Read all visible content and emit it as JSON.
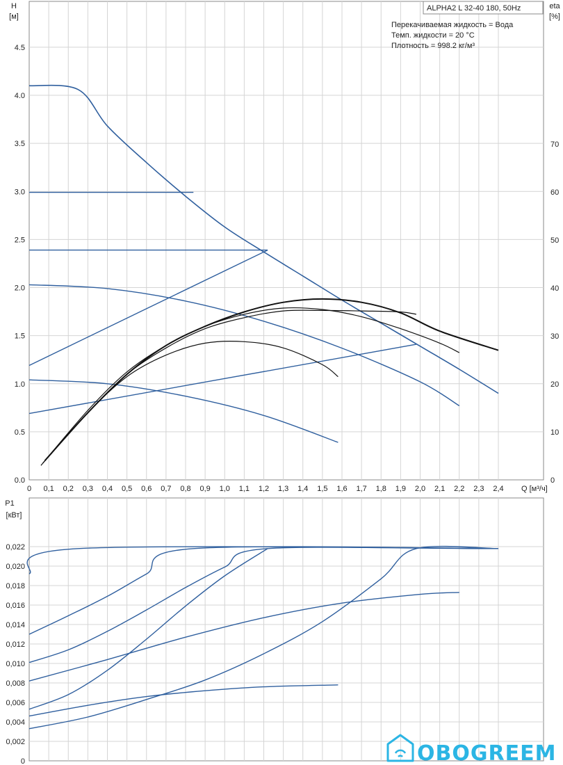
{
  "title_box": "ALPHA2 L 32-40 180, 50Hz",
  "info_lines": [
    "Перекачиваемая жидкость = Вода",
    "Темп. жидкости = 20 °C",
    "Плотность = 998.2 кг/м³"
  ],
  "logo": {
    "text": "OBOGREEM",
    "color": "#2bb5e4"
  },
  "colors": {
    "head_curves": "#2f5f9e",
    "eta_curves": "#111111",
    "grid": "#d4d4d4"
  },
  "chart_data": [
    {
      "type": "line",
      "name": "head",
      "ylabel": "H",
      "yunit": "[м]",
      "y2label": "eta",
      "y2unit": "[%]",
      "xlabel": "Q [м³/ч]",
      "xlim": [
        0,
        2.45
      ],
      "ylim": [
        0,
        4.5
      ],
      "y2lim": [
        0,
        75
      ],
      "grid": true,
      "x_ticks": [
        "0",
        "0,1",
        "0,2",
        "0,3",
        "0,4",
        "0,5",
        "0,6",
        "0,7",
        "0,8",
        "0,9",
        "1,0",
        "1,1",
        "1,2",
        "1,3",
        "1,4",
        "1,5",
        "1,6",
        "1,7",
        "1,8",
        "1,9",
        "2,0",
        "2,1",
        "2,2",
        "2,3",
        "2,4"
      ],
      "y_ticks": [
        "0.0",
        "0.5",
        "1.0",
        "1.5",
        "2.0",
        "2.5",
        "3.0",
        "3.5",
        "4.0",
        "4.5"
      ],
      "y2_ticks": [
        "0",
        "10",
        "20",
        "30",
        "40",
        "50",
        "60",
        "70"
      ],
      "head_series": [
        {
          "x": [
            0,
            0.25,
            0.4,
            0.6,
            0.8,
            1.0,
            1.2,
            1.4,
            1.6,
            1.8,
            2.0,
            2.2,
            2.4
          ],
          "y": [
            4.1,
            4.06,
            3.68,
            3.3,
            2.95,
            2.63,
            2.37,
            2.12,
            1.87,
            1.63,
            1.39,
            1.15,
            0.9
          ]
        },
        {
          "x": [
            0,
            0.84
          ],
          "y": [
            2.99,
            2.99
          ]
        },
        {
          "x": [
            0,
            1.22
          ],
          "y": [
            2.39,
            2.39
          ]
        },
        {
          "x": [
            0,
            1.22
          ],
          "y": [
            1.19,
            2.39
          ]
        },
        {
          "x": [
            0,
            1.98
          ],
          "y": [
            0.69,
            1.41
          ]
        },
        {
          "x": [
            0,
            0.4,
            0.8,
            1.2,
            1.6,
            2.0,
            2.2
          ],
          "y": [
            2.03,
            1.99,
            1.86,
            1.65,
            1.37,
            1.02,
            0.77
          ]
        },
        {
          "x": [
            0,
            0.4,
            0.8,
            1.2,
            1.58
          ],
          "y": [
            1.04,
            1.0,
            0.87,
            0.67,
            0.39
          ]
        }
      ],
      "eta_series": [
        {
          "x": [
            0.08,
            0.3,
            0.5,
            0.7,
            0.9,
            1.1,
            1.3,
            1.5,
            1.7,
            1.9,
            2.1,
            2.4
          ],
          "y": [
            4,
            14,
            22,
            28,
            32,
            35,
            37,
            37.7,
            37,
            34.8,
            31,
            27
          ]
        },
        {
          "x": [
            0.06,
            0.3,
            0.5,
            0.7,
            0.9,
            1.1,
            1.3,
            1.5,
            1.7,
            1.9,
            2.1,
            2.2
          ],
          "y": [
            3,
            14.5,
            22.5,
            28,
            32,
            34.5,
            35.8,
            35.5,
            34,
            31.5,
            28.5,
            26.5
          ]
        },
        {
          "x": [
            0.07,
            0.3,
            0.5,
            0.7,
            0.9,
            1.1,
            1.3,
            1.5,
            1.7,
            1.9,
            1.98
          ],
          "y": [
            3.5,
            14,
            22,
            27.5,
            31.5,
            33.8,
            35.2,
            35.3,
            35.2,
            35,
            34.5
          ]
        },
        {
          "x": [
            0.07,
            0.3,
            0.5,
            0.7,
            0.9,
            1.1,
            1.3,
            1.5,
            1.58
          ],
          "y": [
            3.5,
            14,
            21.5,
            26,
            28.5,
            28.8,
            27.5,
            24,
            21.5
          ]
        }
      ]
    },
    {
      "type": "line",
      "name": "power",
      "ylabel": "P1",
      "yunit": "[кВт]",
      "xlim": [
        0,
        2.45
      ],
      "ylim": [
        0,
        0.024
      ],
      "grid": true,
      "y_ticks": [
        "0",
        "0,002",
        "0,004",
        "0,006",
        "0,008",
        "0,010",
        "0,012",
        "0,014",
        "0,016",
        "0,018",
        "0,020",
        "0,022"
      ],
      "series": [
        {
          "x": [
            0,
            0.25,
            2.4
          ],
          "y": [
            0.0192,
            0.0218,
            0.0218
          ]
        },
        {
          "x": [
            0,
            0.2,
            0.4,
            0.6,
            0.84,
            2.4
          ],
          "y": [
            0.013,
            0.0149,
            0.0169,
            0.0192,
            0.0218,
            0.0218
          ]
        },
        {
          "x": [
            0,
            0.2,
            0.4,
            0.6,
            0.8,
            1.0,
            1.22,
            2.4
          ],
          "y": [
            0.0101,
            0.0114,
            0.0133,
            0.0155,
            0.0178,
            0.0199,
            0.0218,
            0.0218
          ]
        },
        {
          "x": [
            0,
            0.2,
            0.4,
            0.6,
            0.8,
            1.0,
            1.22
          ],
          "y": [
            0.0053,
            0.0068,
            0.0093,
            0.0125,
            0.0159,
            0.019,
            0.0218
          ]
        },
        {
          "x": [
            0,
            0.3,
            0.6,
            0.9,
            1.2,
            1.5,
            1.8,
            1.98,
            2.4
          ],
          "y": [
            0.0033,
            0.0045,
            0.0063,
            0.0083,
            0.011,
            0.0143,
            0.0187,
            0.0218,
            0.0218
          ]
        },
        {
          "x": [
            0,
            0.4,
            0.8,
            1.2,
            1.6,
            2.0,
            2.2
          ],
          "y": [
            0.0082,
            0.0104,
            0.0127,
            0.0147,
            0.0162,
            0.0171,
            0.0173
          ]
        },
        {
          "x": [
            0,
            0.3,
            0.6,
            0.9,
            1.2,
            1.58
          ],
          "y": [
            0.0046,
            0.0057,
            0.0066,
            0.0072,
            0.0076,
            0.0078
          ]
        }
      ]
    }
  ]
}
